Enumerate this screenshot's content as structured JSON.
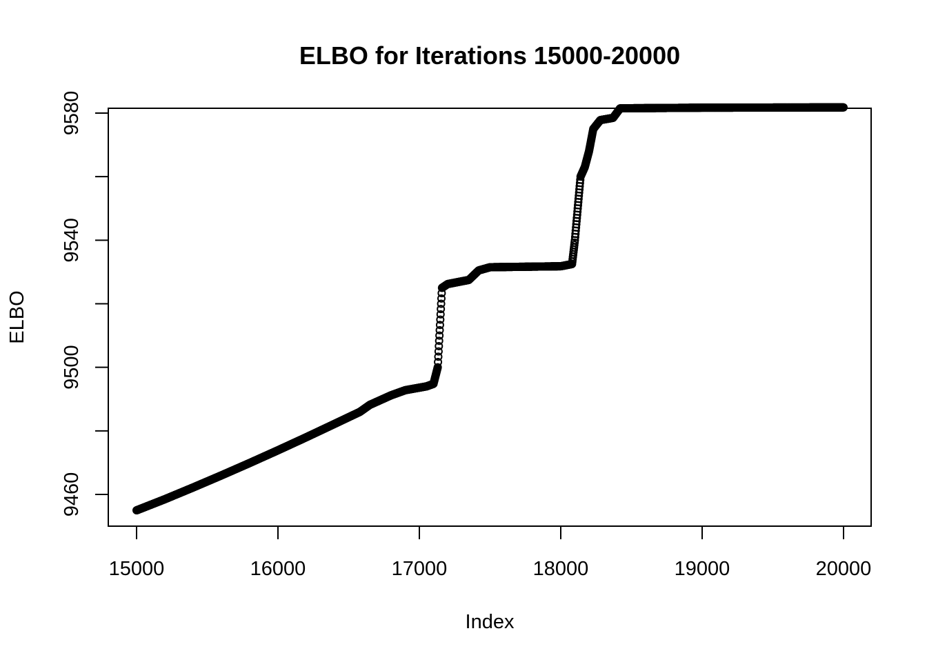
{
  "chart_data": {
    "type": "scatter",
    "title": "ELBO for Iterations 15000-20000",
    "xlabel": "Index",
    "ylabel": "ELBO",
    "xlim": [
      15000,
      20000
    ],
    "ylim": [
      9452,
      9580
    ],
    "x_ticks": [
      15000,
      16000,
      17000,
      18000,
      19000,
      20000
    ],
    "y_ticks": [
      9460,
      9500,
      9540,
      9580
    ],
    "y_minor_ticks": [
      9480,
      9520,
      9560
    ],
    "x_tick_labels": [
      "15000",
      "16000",
      "17000",
      "18000",
      "19000",
      "20000"
    ],
    "y_tick_labels": [
      "9460",
      "9500",
      "9540",
      "9580"
    ],
    "grid": false,
    "legend": "none",
    "marker": "open-circle",
    "color": "#000000",
    "series": [
      {
        "x": [
          15000,
          15200,
          15400,
          15600,
          15800,
          16000,
          16200,
          16400,
          16580,
          16650,
          16800,
          16900,
          17050,
          17100,
          17130,
          17160,
          17200,
          17350,
          17420,
          17500,
          18000,
          18080,
          18100,
          18140,
          18170,
          18200,
          18230,
          18280,
          18370,
          18420,
          19000,
          20000
        ],
        "y": [
          9455,
          9458.5,
          9462.2,
          9466,
          9469.9,
          9473.9,
          9478,
          9482.2,
          9486,
          9488.2,
          9491.2,
          9492.8,
          9494,
          9494.8,
          9500,
          9525,
          9526.2,
          9527.5,
          9530.5,
          9531.5,
          9531.8,
          9532.5,
          9540,
          9560,
          9563,
          9568,
          9575,
          9577.8,
          9578.5,
          9581.5,
          9581.7,
          9581.8
        ]
      }
    ]
  }
}
